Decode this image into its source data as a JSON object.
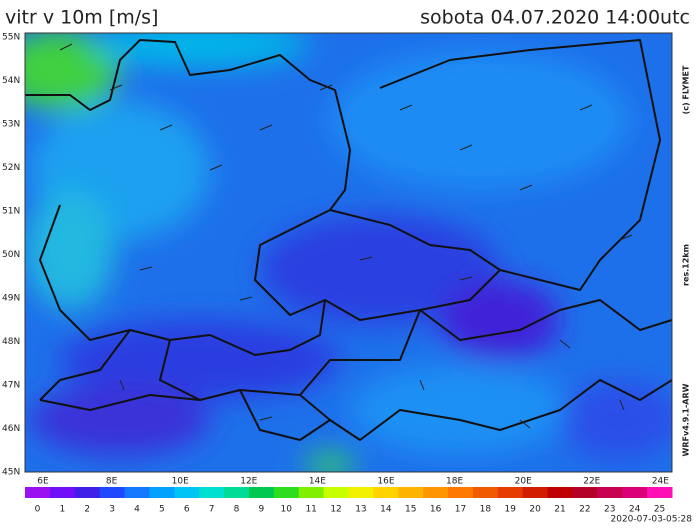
{
  "header": {
    "title": "vitr v 10m [m/s]",
    "datetime": "sobota 04.07.2020 14:00utc"
  },
  "map": {
    "lat_labels": [
      "55N",
      "54N",
      "53N",
      "52N",
      "51N",
      "50N",
      "49N",
      "48N",
      "47N",
      "46N",
      "45N"
    ],
    "lon_labels": [
      "6E",
      "8E",
      "10E",
      "12E",
      "14E",
      "16E",
      "18E",
      "20E",
      "22E",
      "24E"
    ]
  },
  "side_labels": {
    "copyright": "(c) FLYMET",
    "resolution": "res.12km",
    "model": "WRFv4.9.1-ARW"
  },
  "colorbar": {
    "labels": [
      0,
      1,
      2,
      3,
      4,
      5,
      6,
      7,
      8,
      9,
      10,
      11,
      12,
      13,
      14,
      15,
      16,
      17,
      18,
      19,
      20,
      21,
      22,
      23,
      24,
      25
    ],
    "colors": [
      "#9a10f0",
      "#7010f8",
      "#4020e8",
      "#2048ff",
      "#1478ff",
      "#00a0ff",
      "#00c4f4",
      "#00e0d0",
      "#00dc96",
      "#00c850",
      "#30dc20",
      "#80f000",
      "#c8ff00",
      "#f0f000",
      "#ffd200",
      "#ffb400",
      "#ff9600",
      "#ff7800",
      "#f05a00",
      "#e63c00",
      "#d21e00",
      "#be0000",
      "#b40028",
      "#c80050",
      "#dc0078",
      "#ff10b4"
    ]
  },
  "footer": {
    "run": "2020-07-03-05:28"
  }
}
